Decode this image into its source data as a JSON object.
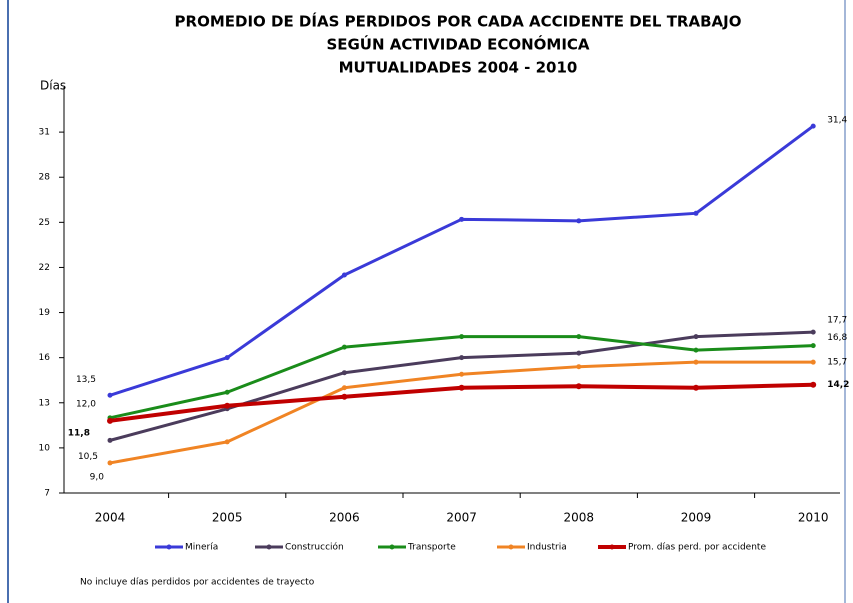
{
  "chart_data": {
    "type": "line",
    "title_lines": [
      "PROMEDIO DE DÍAS PERDIDOS POR CADA ACCIDENTE DEL TRABAJO",
      "SEGÚN ACTIVIDAD ECONÓMICA",
      "MUTUALIDADES 2004 - 2010"
    ],
    "y_label": "Días",
    "categories": [
      "2004",
      "2005",
      "2006",
      "2007",
      "2008",
      "2009",
      "2010"
    ],
    "ylim": [
      7,
      34
    ],
    "yticks": [
      7,
      10,
      13,
      16,
      19,
      22,
      25,
      28,
      31
    ],
    "series": [
      {
        "name": "Minería",
        "color": "#3a3ad8",
        "values": [
          13.5,
          16.0,
          21.5,
          25.2,
          25.1,
          25.6,
          31.4
        ],
        "value_labels": [
          "13,5",
          null,
          null,
          null,
          null,
          null,
          "31,4"
        ]
      },
      {
        "name": "Construcción",
        "color": "#4b3c5c",
        "values": [
          10.5,
          12.6,
          15.0,
          16.0,
          16.3,
          17.4,
          17.7
        ],
        "value_labels": [
          "10,5",
          null,
          null,
          null,
          null,
          null,
          "17,7"
        ]
      },
      {
        "name": "Transporte",
        "color": "#1a8c1a",
        "values": [
          12.0,
          13.7,
          16.7,
          17.4,
          17.4,
          16.5,
          16.8
        ],
        "value_labels": [
          "12,0",
          null,
          null,
          null,
          null,
          null,
          "16,8"
        ]
      },
      {
        "name": "Industria",
        "color": "#f08424",
        "values": [
          9.0,
          10.4,
          14.0,
          14.9,
          15.4,
          15.7,
          15.7
        ],
        "value_labels": [
          "9,0",
          null,
          null,
          null,
          null,
          null,
          "15,7"
        ]
      },
      {
        "name": "Prom. días perd. por accidente",
        "color": "#c00000",
        "values": [
          11.8,
          12.8,
          13.4,
          14.0,
          14.1,
          14.0,
          14.2
        ],
        "value_labels": [
          "11,8",
          null,
          null,
          null,
          null,
          null,
          "14,2"
        ]
      }
    ],
    "note": "No incluye días perdidos por accidentes de trayecto"
  }
}
